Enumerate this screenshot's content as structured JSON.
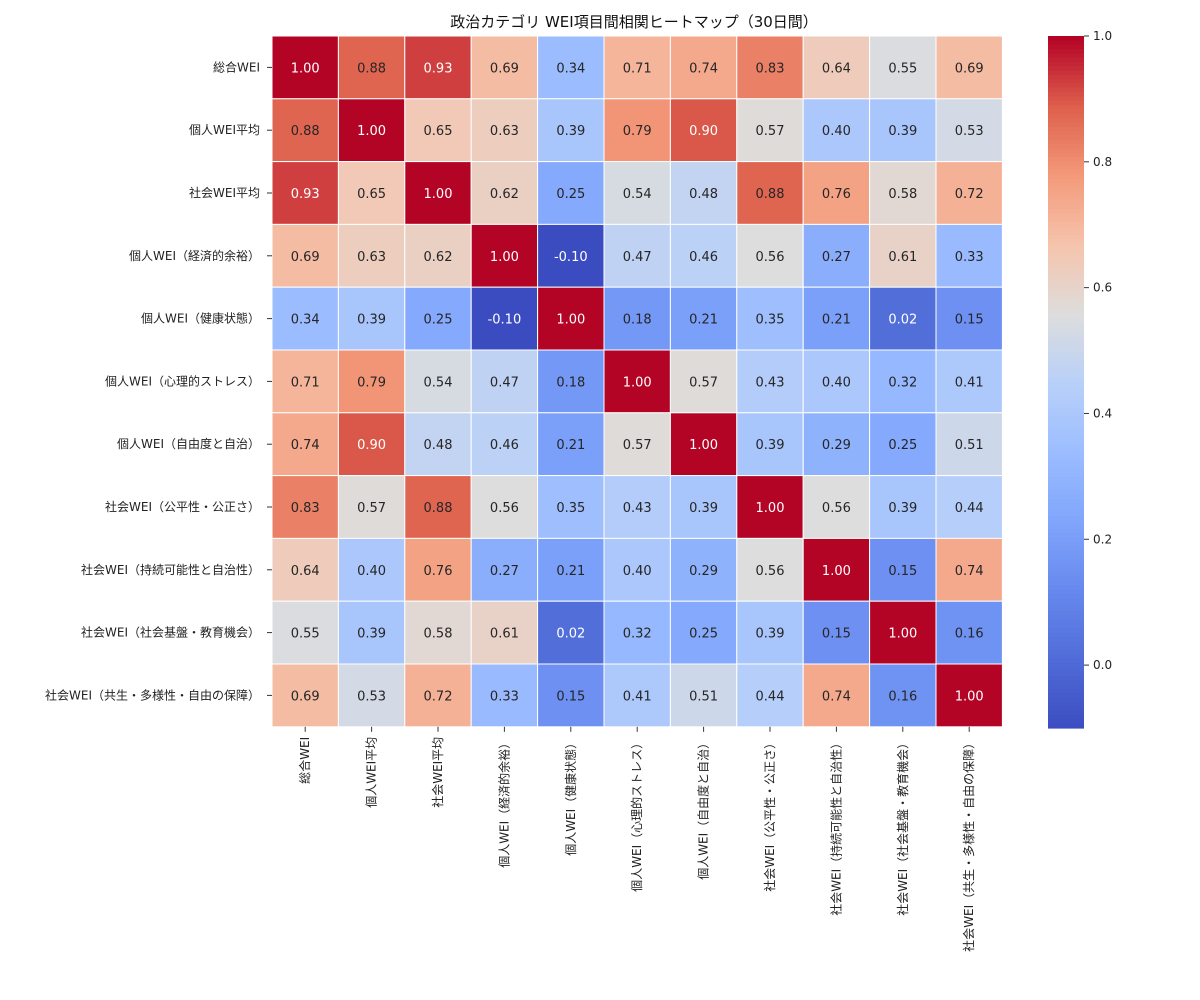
{
  "chart_data": {
    "type": "heatmap",
    "title": "政治カテゴリ WEI項目間相関ヒートマップ（30日間）",
    "labels": [
      "総合WEI",
      "個人WEI平均",
      "社会WEI平均",
      "個人WEI（経済的余裕）",
      "個人WEI（健康状態）",
      "個人WEI（心理的ストレス）",
      "個人WEI（自由度と自治）",
      "社会WEI（公平性・公正さ）",
      "社会WEI（持続可能性と自治性）",
      "社会WEI（社会基盤・教育機会）",
      "社会WEI（共生・多様性・自由の保障）"
    ],
    "matrix": [
      [
        1.0,
        0.88,
        0.93,
        0.69,
        0.34,
        0.71,
        0.74,
        0.83,
        0.64,
        0.55,
        0.69
      ],
      [
        0.88,
        1.0,
        0.65,
        0.63,
        0.39,
        0.79,
        0.9,
        0.57,
        0.4,
        0.39,
        0.53
      ],
      [
        0.93,
        0.65,
        1.0,
        0.62,
        0.25,
        0.54,
        0.48,
        0.88,
        0.76,
        0.58,
        0.72
      ],
      [
        0.69,
        0.63,
        0.62,
        1.0,
        -0.1,
        0.47,
        0.46,
        0.56,
        0.27,
        0.61,
        0.33
      ],
      [
        0.34,
        0.39,
        0.25,
        -0.1,
        1.0,
        0.18,
        0.21,
        0.35,
        0.21,
        0.02,
        0.15
      ],
      [
        0.71,
        0.79,
        0.54,
        0.47,
        0.18,
        1.0,
        0.57,
        0.43,
        0.4,
        0.32,
        0.41
      ],
      [
        0.74,
        0.9,
        0.48,
        0.46,
        0.21,
        0.57,
        1.0,
        0.39,
        0.29,
        0.25,
        0.51
      ],
      [
        0.83,
        0.57,
        0.88,
        0.56,
        0.35,
        0.43,
        0.39,
        1.0,
        0.56,
        0.39,
        0.44
      ],
      [
        0.64,
        0.4,
        0.76,
        0.27,
        0.21,
        0.4,
        0.29,
        0.56,
        1.0,
        0.15,
        0.74
      ],
      [
        0.55,
        0.39,
        0.58,
        0.61,
        0.02,
        0.32,
        0.25,
        0.39,
        0.15,
        1.0,
        0.16
      ],
      [
        0.69,
        0.53,
        0.72,
        0.33,
        0.15,
        0.41,
        0.51,
        0.44,
        0.74,
        0.16,
        1.0
      ]
    ],
    "value_format": "2 decimals",
    "colormap": "coolwarm",
    "vmin": -0.1,
    "vmax": 1.0,
    "colorbar_ticks": [
      "0.0",
      "0.2",
      "0.4",
      "0.6",
      "0.8",
      "1.0"
    ],
    "colorbar_tick_values": [
      0.0,
      0.2,
      0.4,
      0.6,
      0.8,
      1.0
    ]
  }
}
